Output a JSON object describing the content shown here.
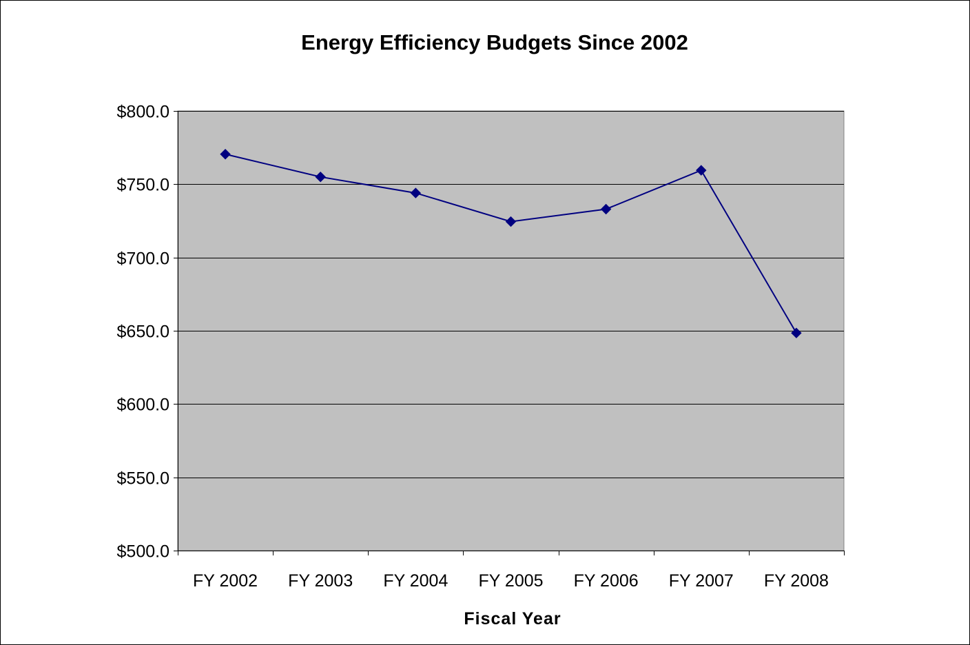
{
  "chart_data": {
    "type": "line",
    "title": "Energy Efficiency Budgets Since 2002",
    "xlabel": "Fiscal Year",
    "ylabel": "",
    "categories": [
      "FY 2002",
      "FY 2003",
      "FY 2004",
      "FY 2005",
      "FY 2006",
      "FY 2007",
      "FY 2008"
    ],
    "series": [
      {
        "values": [
          770.5,
          755.0,
          744.0,
          724.5,
          733.0,
          759.5,
          648.5
        ]
      }
    ],
    "ylim": [
      500,
      800
    ],
    "yticks": [
      500,
      550,
      600,
      650,
      700,
      750,
      800
    ],
    "ytick_labels": [
      "$500.0",
      "$550.0",
      "$600.0",
      "$650.0",
      "$700.0",
      "$750.0",
      "$800.0"
    ],
    "grid": true,
    "legend": "none",
    "colors": {
      "plot_background": "#C0C0C0",
      "line": "#000080",
      "marker": "#000080",
      "gridline": "#000000"
    }
  }
}
